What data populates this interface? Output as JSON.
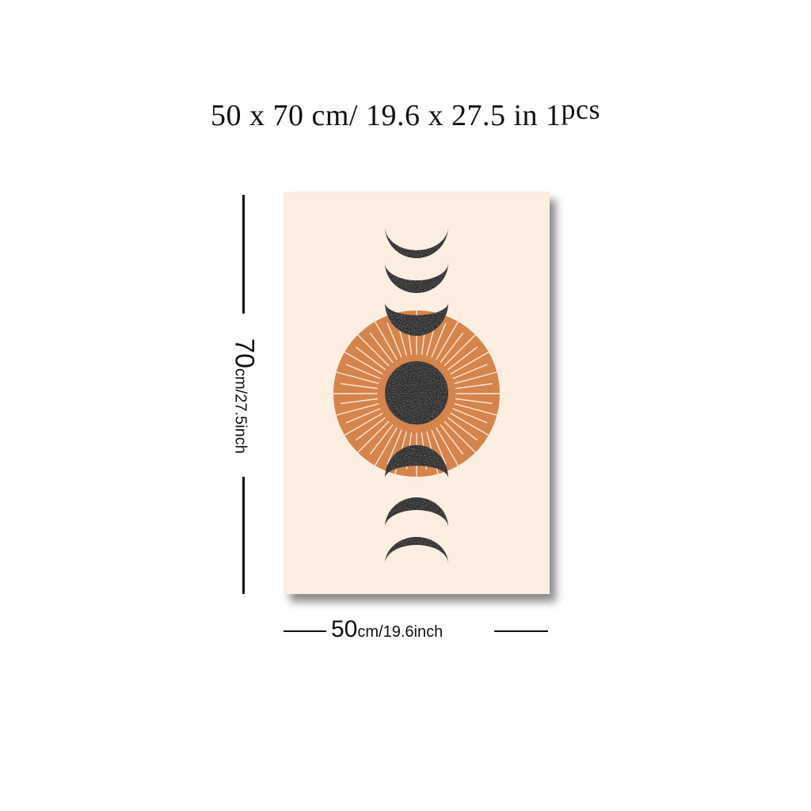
{
  "header": {
    "title_main": "50 x 70 cm/ 19.6 x 27.5 in 1",
    "title_sup": "pcs"
  },
  "poster": {
    "background_color": "#fdeee2",
    "sun_color": "#d5844c",
    "moon_color": "#2a2a2a",
    "moon_phases": [
      "waning-crescent",
      "waning-crescent",
      "half",
      "full",
      "half",
      "waxing-crescent",
      "waxing-crescent"
    ]
  },
  "dimensions": {
    "height_value": "70",
    "height_unit": "cm/27.5inch",
    "width_value": "50",
    "width_unit": "cm/19.6inch"
  }
}
